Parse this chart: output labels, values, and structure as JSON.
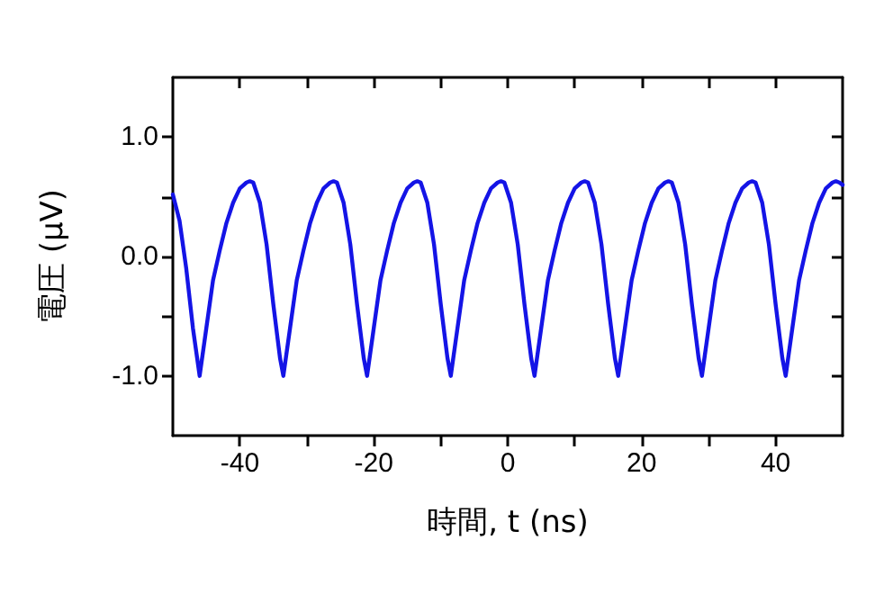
{
  "chart_data": {
    "type": "line",
    "xlabel": "時間, t (ns)",
    "ylabel": "電圧 (μV)",
    "xlim": [
      -50,
      50
    ],
    "ylim": [
      -1.5,
      1.5
    ],
    "xticks": [
      -40,
      {
        "value": -30,
        "label": null
      },
      -20,
      {
        "value": -10,
        "label": null
      },
      0,
      {
        "value": 10,
        "label": null
      },
      20,
      {
        "value": 30,
        "label": null
      },
      40
    ],
    "yticks": [
      {
        "value": -1,
        "label": "-1.0"
      },
      {
        "value": -0.5,
        "label": null
      },
      {
        "value": 0,
        "label": "0.0"
      },
      {
        "value": 0.5,
        "label": null
      },
      {
        "value": 1,
        "label": "1.0"
      }
    ],
    "grid": false,
    "marker": "none",
    "line_style": "solid",
    "series": [
      {
        "color": "#1414e6",
        "x": [
          -50,
          -49,
          -48,
          -47,
          -46,
          -45,
          -44,
          -43,
          -42,
          -41,
          -40,
          -39,
          -38.5,
          -38,
          -37,
          -36,
          -35,
          -34,
          -33.5,
          -32.5,
          -31.5,
          -30.5,
          -29.5,
          -28.5,
          -27.5,
          -26.5,
          -26,
          -25.5,
          -24.5,
          -23.5,
          -22.5,
          -21.5,
          -21,
          -20,
          -19,
          -18,
          -17,
          -16,
          -15,
          -14,
          -13.5,
          -13,
          -12,
          -11,
          -10,
          -9,
          -8.5,
          -7.5,
          -6.5,
          -5.5,
          -4.5,
          -3.5,
          -2.5,
          -1.5,
          -1,
          -0.5,
          0.5,
          1.5,
          2.5,
          3.5,
          4,
          5,
          6,
          7,
          8,
          9,
          10,
          11,
          11.5,
          12,
          13,
          14,
          15,
          16,
          16.5,
          17.5,
          18.5,
          19.5,
          20.5,
          21.5,
          22.5,
          23.5,
          24,
          24.5,
          25.5,
          26.5,
          27.5,
          28.5,
          29,
          30,
          31,
          32,
          33,
          34,
          35,
          36,
          36.5,
          37,
          38,
          39,
          40,
          41,
          41.5,
          42.5,
          43.5,
          44.5,
          45.5,
          46.5,
          47.5,
          48.5,
          49,
          49.5,
          50
        ],
        "values": [
          0.52,
          0.3,
          -0.1,
          -0.6,
          -1.0,
          -0.6,
          -0.2,
          0.05,
          0.28,
          0.45,
          0.57,
          0.62,
          0.63,
          0.62,
          0.45,
          0.1,
          -0.4,
          -0.85,
          -1.0,
          -0.6,
          -0.2,
          0.05,
          0.28,
          0.45,
          0.57,
          0.62,
          0.63,
          0.62,
          0.45,
          0.1,
          -0.4,
          -0.85,
          -1.0,
          -0.6,
          -0.2,
          0.05,
          0.28,
          0.45,
          0.57,
          0.62,
          0.63,
          0.62,
          0.45,
          0.1,
          -0.4,
          -0.85,
          -1.0,
          -0.6,
          -0.2,
          0.05,
          0.28,
          0.45,
          0.57,
          0.62,
          0.63,
          0.62,
          0.45,
          0.1,
          -0.4,
          -0.85,
          -1.0,
          -0.6,
          -0.2,
          0.05,
          0.28,
          0.45,
          0.57,
          0.62,
          0.63,
          0.62,
          0.45,
          0.1,
          -0.4,
          -0.85,
          -1.0,
          -0.6,
          -0.2,
          0.05,
          0.28,
          0.45,
          0.57,
          0.62,
          0.63,
          0.62,
          0.45,
          0.1,
          -0.4,
          -0.85,
          -1.0,
          -0.6,
          -0.2,
          0.05,
          0.28,
          0.45,
          0.57,
          0.62,
          0.63,
          0.62,
          0.45,
          0.1,
          -0.4,
          -0.85,
          -1.0,
          -0.6,
          -0.2,
          0.05,
          0.28,
          0.45,
          0.57,
          0.62,
          0.63,
          0.62,
          0.6
        ]
      }
    ]
  }
}
